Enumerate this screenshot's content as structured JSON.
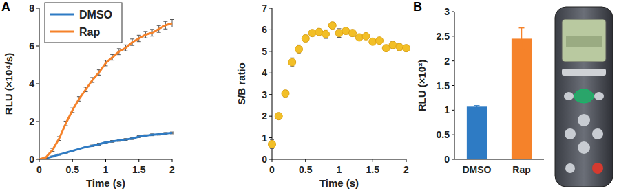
{
  "chart_data": [
    {
      "type": "line",
      "title": "A",
      "x_label": "Time (s)",
      "y_label": "RLU (×10⁴/s)",
      "x": [
        0,
        0.1,
        0.2,
        0.3,
        0.4,
        0.5,
        0.6,
        0.7,
        0.8,
        0.9,
        1.0,
        1.1,
        1.2,
        1.3,
        1.4,
        1.5,
        1.6,
        1.7,
        1.8,
        1.9,
        2.0
      ],
      "series": [
        {
          "name": "DMSO",
          "color": "#2e7bc4",
          "values": [
            0,
            0.05,
            0.15,
            0.25,
            0.35,
            0.45,
            0.55,
            0.65,
            0.72,
            0.8,
            0.9,
            0.95,
            1.0,
            1.05,
            1.1,
            1.2,
            1.25,
            1.3,
            1.33,
            1.37,
            1.4
          ],
          "errors": [
            0.02,
            0.02,
            0.03,
            0.03,
            0.03,
            0.04,
            0.04,
            0.04,
            0.04,
            0.05,
            0.05,
            0.05,
            0.05,
            0.05,
            0.05,
            0.05,
            0.05,
            0.05,
            0.05,
            0.05,
            0.05
          ]
        },
        {
          "name": "Rap",
          "color": "#f5822a",
          "values": [
            0,
            0.1,
            0.5,
            1.1,
            1.9,
            2.6,
            3.2,
            3.7,
            4.2,
            4.6,
            5.1,
            5.4,
            5.7,
            5.9,
            6.2,
            6.4,
            6.6,
            6.7,
            6.9,
            7.1,
            7.2
          ],
          "errors": [
            0.02,
            0.03,
            0.08,
            0.1,
            0.12,
            0.12,
            0.12,
            0.12,
            0.13,
            0.14,
            0.15,
            0.15,
            0.16,
            0.16,
            0.17,
            0.17,
            0.17,
            0.18,
            0.18,
            0.2,
            0.2
          ]
        }
      ],
      "xlim": [
        0,
        2
      ],
      "xticks": [
        0,
        0.5,
        1,
        1.5,
        2
      ],
      "ylim": [
        0,
        8
      ],
      "yticks": [
        0,
        2,
        4,
        6,
        8
      ],
      "legend": "upper left"
    },
    {
      "type": "scatter",
      "x_label": "Time (s)",
      "y_label": "S/B ratio",
      "x": [
        0,
        0.1,
        0.2,
        0.3,
        0.4,
        0.5,
        0.6,
        0.7,
        0.8,
        0.9,
        1.0,
        1.1,
        1.2,
        1.3,
        1.4,
        1.5,
        1.6,
        1.7,
        1.8,
        1.9,
        2.0
      ],
      "series": [
        {
          "color": "#f2bf27",
          "marker": "circle",
          "values": [
            0.7,
            2.0,
            3.05,
            4.5,
            5.1,
            5.6,
            5.85,
            5.9,
            5.8,
            6.2,
            5.85,
            5.95,
            5.85,
            5.65,
            5.7,
            5.45,
            5.5,
            5.15,
            5.3,
            5.2,
            5.15
          ],
          "errors": [
            0.2,
            0.15,
            0.15,
            0.2,
            0.2,
            0.15,
            0.15,
            0.15,
            0.2,
            0.15,
            0.2,
            0.15,
            0.15,
            0.15,
            0.1,
            0.1,
            0.1,
            0.1,
            0.15,
            0.15,
            0.15
          ]
        }
      ],
      "xlim": [
        0,
        2
      ],
      "xticks": [
        0,
        0.5,
        1,
        1.5,
        2
      ],
      "ylim": [
        0,
        7
      ],
      "yticks": [
        0,
        1,
        2,
        3,
        4,
        5,
        6,
        7
      ]
    },
    {
      "type": "bar",
      "title": "B",
      "y_label": "RLU (×10²)",
      "categories": [
        "DMSO",
        "Rap"
      ],
      "values": [
        1.07,
        2.45
      ],
      "errors": [
        0.02,
        0.22
      ],
      "colors": [
        "#2e7bc4",
        "#f5822a"
      ],
      "ylim": [
        0,
        3
      ],
      "yticks": [
        0,
        0.5,
        1,
        1.5,
        2,
        2.5,
        3
      ]
    }
  ]
}
